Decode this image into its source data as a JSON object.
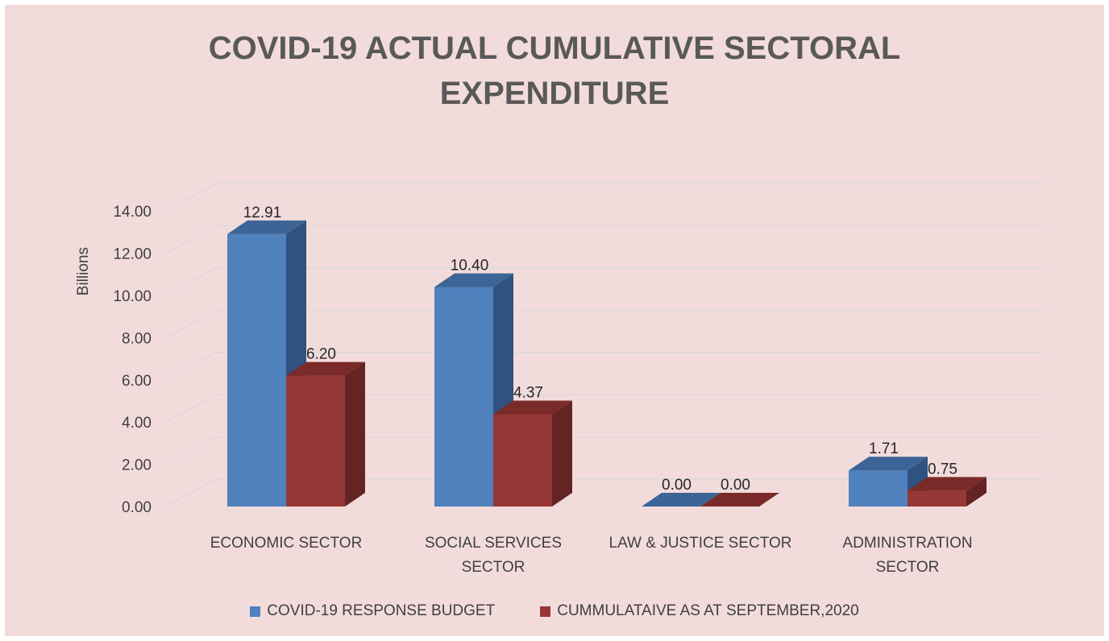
{
  "chart_data": {
    "type": "bar",
    "title_lines": [
      "COVID-19 ACTUAL CUMULATIVE SECTORAL",
      "EXPENDITURE"
    ],
    "ylabel": "Billions",
    "ylim": [
      0,
      14
    ],
    "ytick_step": 2,
    "y_tick_labels": [
      "0.00",
      "2.00",
      "4.00",
      "6.00",
      "8.00",
      "10.00",
      "12.00",
      "14.00"
    ],
    "categories": [
      [
        "ECONOMIC SECTOR"
      ],
      [
        "SOCIAL SERVICES",
        "SECTOR"
      ],
      [
        "LAW & JUSTICE SECTOR"
      ],
      [
        "ADMINISTRATION",
        "SECTOR"
      ]
    ],
    "series": [
      {
        "name": "COVID-19 RESPONSE BUDGET",
        "values": [
          12.91,
          10.4,
          0.0,
          1.71
        ],
        "labels": [
          "12.91",
          "10.40",
          "0.00",
          "1.71"
        ],
        "color": "#4f81bd",
        "top_color": "#3c6496",
        "side_color": "#2f5280"
      },
      {
        "name": "CUMMULATAIVE AS AT SEPTEMBER,2020",
        "values": [
          6.2,
          4.37,
          0.0,
          0.75
        ],
        "labels": [
          "6.20",
          "4.37",
          "0.00",
          "0.75"
        ],
        "color": "#953735",
        "top_color": "#7a2a29",
        "side_color": "#632423"
      }
    ],
    "grid": true,
    "legend_position": "bottom"
  }
}
